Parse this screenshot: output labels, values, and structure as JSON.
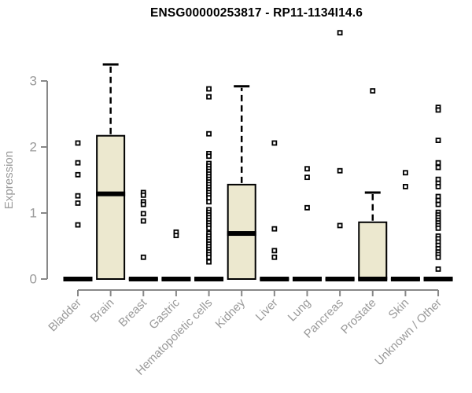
{
  "chart_data": {
    "type": "boxplot",
    "title": "ENSG00000253817 - RP11-1134I14.6",
    "ylabel": "Expression",
    "ylim": [
      0,
      3
    ],
    "yticks": [
      0,
      1,
      2,
      3
    ],
    "grid": false,
    "legend": "none",
    "categories": [
      "Bladder",
      "Brain",
      "Breast",
      "Gastric",
      "Hematopoietic cells",
      "Kidney",
      "Liver",
      "Lung",
      "Pancreas",
      "Prostate",
      "Skin",
      "Unknown / Other"
    ],
    "series": [
      {
        "name": "Bladder",
        "q1": 0,
        "median": 0,
        "q3": 0,
        "whisker_low": 0,
        "whisker_high": 0,
        "outliers": [
          2.06,
          1.76,
          1.58,
          1.26,
          1.15,
          0.82
        ]
      },
      {
        "name": "Brain",
        "q1": 0,
        "median": 1.29,
        "q3": 2.17,
        "whisker_low": 0,
        "whisker_high": 3.25,
        "outliers": []
      },
      {
        "name": "Breast",
        "q1": 0,
        "median": 0,
        "q3": 0,
        "whisker_low": 0,
        "whisker_high": 0,
        "outliers": [
          1.31,
          1.27,
          1.17,
          1.13,
          0.99,
          0.88,
          0.33
        ]
      },
      {
        "name": "Gastric",
        "q1": 0,
        "median": 0,
        "q3": 0,
        "whisker_low": 0,
        "whisker_high": 0,
        "outliers": [
          0.71,
          0.66
        ]
      },
      {
        "name": "Hematopoietic cells",
        "q1": 0,
        "median": 0,
        "q3": 0,
        "whisker_low": 0,
        "whisker_high": 0,
        "outliers": [
          2.88,
          2.76,
          2.2,
          1.9,
          1.86,
          1.75,
          1.71,
          1.67,
          1.63,
          1.59,
          1.55,
          1.51,
          1.47,
          1.43,
          1.39,
          1.35,
          1.31,
          1.27,
          1.23,
          1.17,
          1.05,
          1.01,
          0.97,
          0.93,
          0.89,
          0.85,
          0.81,
          0.77,
          0.69,
          0.65,
          0.61,
          0.57,
          0.53,
          0.49,
          0.45,
          0.41,
          0.37,
          0.33,
          0.26
        ]
      },
      {
        "name": "Kidney",
        "q1": 0,
        "median": 0.69,
        "q3": 1.43,
        "whisker_low": 0,
        "whisker_high": 2.92,
        "outliers": []
      },
      {
        "name": "Liver",
        "q1": 0,
        "median": 0,
        "q3": 0,
        "whisker_low": 0,
        "whisker_high": 0,
        "outliers": [
          2.06,
          0.76,
          0.43,
          0.33
        ]
      },
      {
        "name": "Lung",
        "q1": 0,
        "median": 0,
        "q3": 0,
        "whisker_low": 0,
        "whisker_high": 0,
        "outliers": [
          1.67,
          1.54,
          1.08
        ]
      },
      {
        "name": "Pancreas",
        "q1": 0,
        "median": 0,
        "q3": 0,
        "whisker_low": 0,
        "whisker_high": 0,
        "outliers": [
          3.73,
          1.64,
          0.81
        ]
      },
      {
        "name": "Prostate",
        "q1": 0,
        "median": 0,
        "q3": 0.86,
        "whisker_low": 0,
        "whisker_high": 1.31,
        "outliers": [
          2.85
        ]
      },
      {
        "name": "Skin",
        "q1": 0,
        "median": 0,
        "q3": 0,
        "whisker_low": 0,
        "whisker_high": 0,
        "outliers": [
          1.61,
          1.4
        ]
      },
      {
        "name": "Unknown / Other",
        "q1": 0,
        "median": 0,
        "q3": 0,
        "whisker_low": 0,
        "whisker_high": 0,
        "outliers": [
          2.6,
          2.56,
          2.1,
          1.76,
          1.69,
          1.51,
          1.45,
          1.4,
          1.25,
          1.19,
          1.13,
          1.01,
          0.97,
          0.93,
          0.89,
          0.85,
          0.81,
          0.77,
          0.65,
          0.61,
          0.56,
          0.51,
          0.46,
          0.41,
          0.37,
          0.33,
          0.15
        ]
      }
    ],
    "colors": {
      "box_fill": "#ece8cf",
      "box_border": "#000000",
      "median": "#000000",
      "whisker": "#000000",
      "outlier": "#000000",
      "axis": "#888888",
      "tick_label": "#9a9a9a",
      "title": "#000000"
    }
  }
}
